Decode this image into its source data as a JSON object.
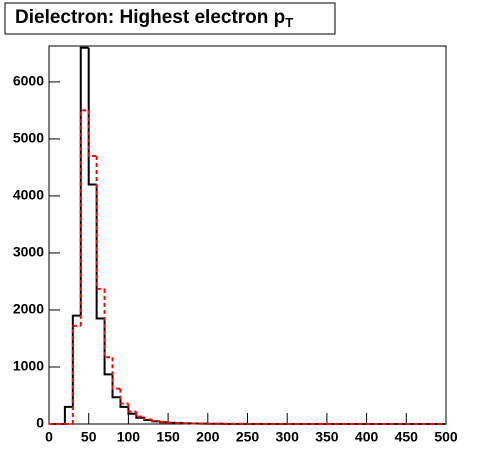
{
  "chart_data": {
    "type": "histogram",
    "title": "Dielectron: Highest electron p",
    "title_subscript": "T",
    "bins": [
      0,
      10,
      20,
      30,
      40,
      50,
      60,
      70,
      80,
      90,
      100,
      110,
      120,
      130,
      140,
      150,
      160,
      170,
      180,
      190,
      200,
      210,
      220,
      230,
      240,
      250,
      260,
      270,
      280,
      290,
      300,
      310,
      320,
      330,
      340,
      350,
      360,
      370,
      380,
      390,
      400,
      410,
      420,
      430,
      440,
      450,
      460,
      470,
      480,
      490,
      500
    ],
    "series": [
      {
        "color": "#000000",
        "line_style": "solid",
        "values": [
          0,
          0,
          300,
          1900,
          6600,
          4200,
          1850,
          870,
          470,
          300,
          180,
          110,
          70,
          45,
          30,
          20,
          15,
          10,
          8,
          6,
          5,
          4,
          3,
          2,
          2,
          1,
          1,
          1,
          0,
          0,
          0,
          0,
          0,
          0,
          0,
          0,
          0,
          0,
          0,
          0,
          0,
          0,
          0,
          0,
          0,
          0,
          0,
          0,
          0,
          0
        ]
      },
      {
        "color": "#ff0000",
        "line_style": "dashed",
        "values": [
          0,
          0,
          0,
          1720,
          5500,
          4700,
          2370,
          1170,
          620,
          360,
          220,
          130,
          80,
          50,
          35,
          25,
          18,
          12,
          9,
          7,
          5,
          4,
          3,
          2,
          2,
          1,
          1,
          1,
          0,
          0,
          0,
          0,
          0,
          0,
          0,
          0,
          0,
          0,
          0,
          0,
          0,
          0,
          0,
          0,
          0,
          0,
          0,
          0,
          0,
          0
        ]
      }
    ],
    "xlim": [
      0,
      500
    ],
    "xticks": [
      0,
      50,
      100,
      150,
      200,
      250,
      300,
      350,
      400,
      450,
      500
    ],
    "ylim": [
      0,
      6630
    ],
    "yticks": [
      0,
      1000,
      2000,
      3000,
      4000,
      5000,
      6000
    ]
  }
}
